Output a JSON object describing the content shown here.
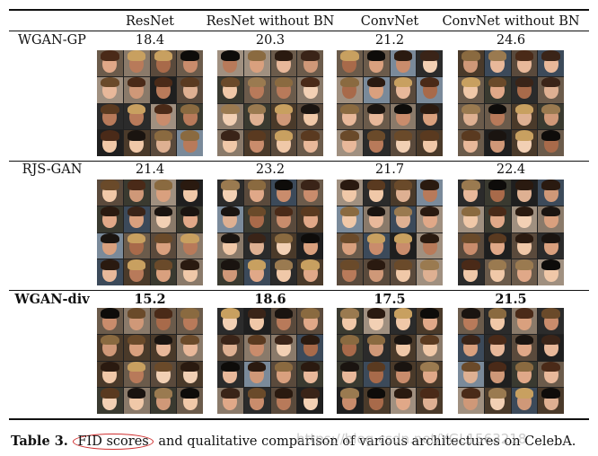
{
  "columns": [
    "ResNet",
    "ResNet without BN",
    "ConvNet",
    "ConvNet without BN"
  ],
  "rows": [
    {
      "method": "WGAN-GP",
      "bold": false,
      "scores": [
        "18.4",
        "20.3",
        "21.2",
        "24.6"
      ]
    },
    {
      "method": "RJS-GAN",
      "bold": false,
      "scores": [
        "21.4",
        "23.2",
        "21.7",
        "22.4"
      ]
    },
    {
      "method": "WGAN-div",
      "bold": true,
      "scores": [
        "15.2",
        "18.6",
        "17.5",
        "21.5"
      ]
    }
  ],
  "caption": {
    "label": "Table 3.",
    "highlight": "FID scores",
    "rest": "and qualitative comparison of various architectures on CelebA."
  },
  "watermark": "https://blog.csdn.net/YGL1563218",
  "annotation_color": "#d03030"
}
